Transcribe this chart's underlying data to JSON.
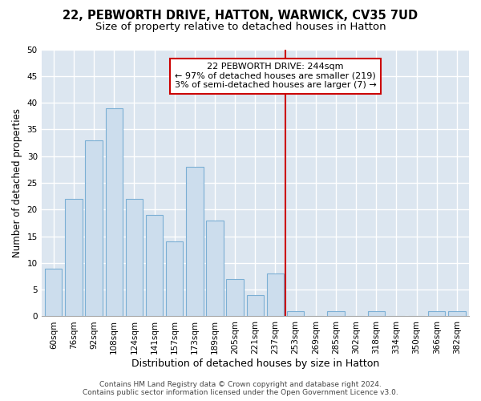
{
  "title1": "22, PEBWORTH DRIVE, HATTON, WARWICK, CV35 7UD",
  "title2": "Size of property relative to detached houses in Hatton",
  "xlabel": "Distribution of detached houses by size in Hatton",
  "ylabel": "Number of detached properties",
  "categories": [
    "60sqm",
    "76sqm",
    "92sqm",
    "108sqm",
    "124sqm",
    "141sqm",
    "157sqm",
    "173sqm",
    "189sqm",
    "205sqm",
    "221sqm",
    "237sqm",
    "253sqm",
    "269sqm",
    "285sqm",
    "302sqm",
    "318sqm",
    "334sqm",
    "350sqm",
    "366sqm",
    "382sqm"
  ],
  "values": [
    9,
    22,
    33,
    39,
    22,
    19,
    14,
    28,
    18,
    7,
    4,
    8,
    1,
    0,
    1,
    0,
    1,
    0,
    0,
    1,
    1
  ],
  "bar_color": "#ccdded",
  "bar_edge_color": "#7bafd4",
  "red_line_x": 11.5,
  "annotation_text": "22 PEBWORTH DRIVE: 244sqm\n← 97% of detached houses are smaller (219)\n3% of semi-detached houses are larger (7) →",
  "annotation_box_facecolor": "#ffffff",
  "annotation_box_edgecolor": "#cc0000",
  "footer1": "Contains HM Land Registry data © Crown copyright and database right 2024.",
  "footer2": "Contains public sector information licensed under the Open Government Licence v3.0.",
  "ylim": [
    0,
    50
  ],
  "yticks": [
    0,
    5,
    10,
    15,
    20,
    25,
    30,
    35,
    40,
    45,
    50
  ],
  "plot_bg_color": "#dce6f0",
  "fig_bg_color": "#ffffff",
  "grid_color": "#ffffff",
  "title1_fontsize": 10.5,
  "title2_fontsize": 9.5,
  "xlabel_fontsize": 9,
  "ylabel_fontsize": 8.5,
  "tick_fontsize": 7.5,
  "annot_fontsize": 8,
  "footer_fontsize": 6.5
}
